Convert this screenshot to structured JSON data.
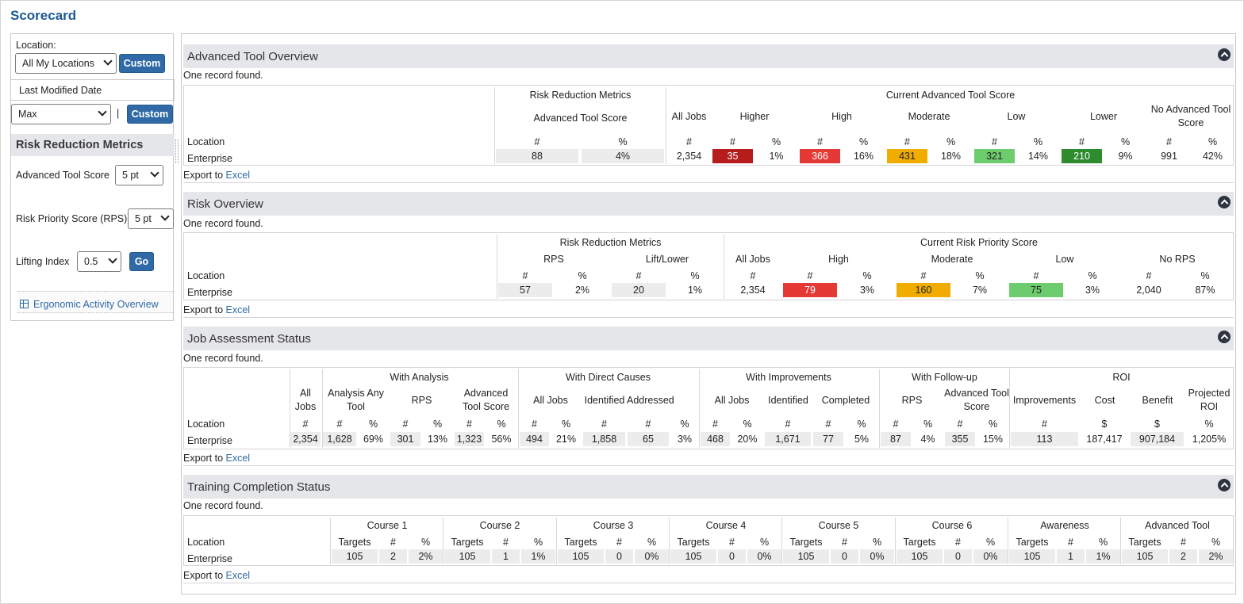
{
  "page": {
    "title": "Scorecard"
  },
  "sidebar": {
    "location_label": "Location:",
    "location_value": "All My Locations",
    "custom_label": "Custom",
    "date_label": "Last Modified Date",
    "date_value": "Max",
    "pipe": "|",
    "section_title": "Risk Reduction Metrics",
    "advanced_tool_score_label": "Advanced Tool Score",
    "advanced_tool_score_value": "5 pt",
    "rps_label": "Risk Priority Score (RPS)",
    "rps_value": "5 pt",
    "lifting_index_label": "Lifting Index",
    "lifting_index_value": "0.5",
    "go_label": "Go",
    "link_label": "Ergonomic Activity Overview"
  },
  "common": {
    "records_found": "One record found.",
    "export_prefix": "Export to",
    "export_link": "Excel",
    "location_header": "Location",
    "row_location": "Enterprise"
  },
  "ato": {
    "title": "Advanced Tool Overview",
    "group_rrm": "Risk Reduction Metrics",
    "group_cats": "Current Advanced Tool Score",
    "sub_ats": "Advanced Tool Score",
    "cols": [
      "All Jobs",
      "Higher",
      "High",
      "Moderate",
      "Low",
      "Lower",
      "No Advanced Tool Score"
    ],
    "units": [
      "#",
      "%",
      "#",
      "#",
      "%",
      "#",
      "%",
      "#",
      "%",
      "#",
      "%",
      "#",
      "%",
      "#",
      "%"
    ],
    "values": [
      "88",
      "4%",
      "2,354",
      "35",
      "1%",
      "366",
      "16%",
      "431",
      "18%",
      "321",
      "14%",
      "210",
      "9%",
      "991",
      "42%"
    ]
  },
  "ro": {
    "title": "Risk Overview",
    "group_rrm": "Risk Reduction Metrics",
    "group_cats": "Current Risk Priority Score",
    "cols": [
      "RPS",
      "Lift/Lower",
      "All Jobs",
      "High",
      "Moderate",
      "Low",
      "No RPS"
    ],
    "units": [
      "#",
      "%",
      "#",
      "%",
      "#",
      "#",
      "%",
      "#",
      "%",
      "#",
      "%",
      "#",
      "%"
    ],
    "values": [
      "57",
      "2%",
      "20",
      "1%",
      "2,354",
      "79",
      "3%",
      "160",
      "7%",
      "75",
      "3%",
      "2,040",
      "87%"
    ]
  },
  "jas": {
    "title": "Job Assessment Status",
    "groups": [
      "With Analysis",
      "With Direct Causes",
      "With Improvements",
      "With Follow-up",
      "ROI"
    ],
    "cols": [
      "All Jobs",
      "Analysis Any Tool",
      "RPS",
      "Advanced Tool Score",
      "All Jobs",
      "Identified",
      "Addressed",
      "All Jobs",
      "Identified",
      "Completed",
      "RPS",
      "Advanced Tool Score",
      "Improvements",
      "Cost",
      "Benefit",
      "Projected ROI"
    ],
    "units": [
      "#",
      "#",
      "%",
      "#",
      "%",
      "#",
      "%",
      "#",
      "%",
      "#",
      "#",
      "%",
      "#",
      "%",
      "#",
      "#",
      "%",
      "#",
      "%",
      "#",
      "%",
      "#",
      "$",
      "$",
      "%"
    ],
    "values": [
      "2,354",
      "1,628",
      "69%",
      "301",
      "13%",
      "1,323",
      "56%",
      "494",
      "21%",
      "1,858",
      "65",
      "3%",
      "468",
      "20%",
      "1,671",
      "77",
      "5%",
      "87",
      "4%",
      "355",
      "15%",
      "113",
      "187,417",
      "907,184",
      "1,205%"
    ]
  },
  "tcs": {
    "title": "Training Completion Status",
    "courses": [
      "Course 1",
      "Course 2",
      "Course 3",
      "Course 4",
      "Course 5",
      "Course 6",
      "Awareness",
      "Advanced Tool"
    ],
    "sub": [
      "Targets",
      "#",
      "%"
    ],
    "values": [
      [
        "105",
        "2",
        "2%"
      ],
      [
        "105",
        "1",
        "1%"
      ],
      [
        "105",
        "0",
        "0%"
      ],
      [
        "105",
        "0",
        "0%"
      ],
      [
        "105",
        "0",
        "0%"
      ],
      [
        "105",
        "0",
        "0%"
      ],
      [
        "105",
        "1",
        "1%"
      ],
      [
        "105",
        "2",
        "2%"
      ]
    ]
  },
  "colors": {
    "accent": "#2f6aa6",
    "section_bg": "#e5e6ea",
    "higher": "#b71c1c",
    "high": "#e53935",
    "moderate": "#f0ad00",
    "low": "#6dcc6d",
    "lower": "#2e8b2e"
  }
}
